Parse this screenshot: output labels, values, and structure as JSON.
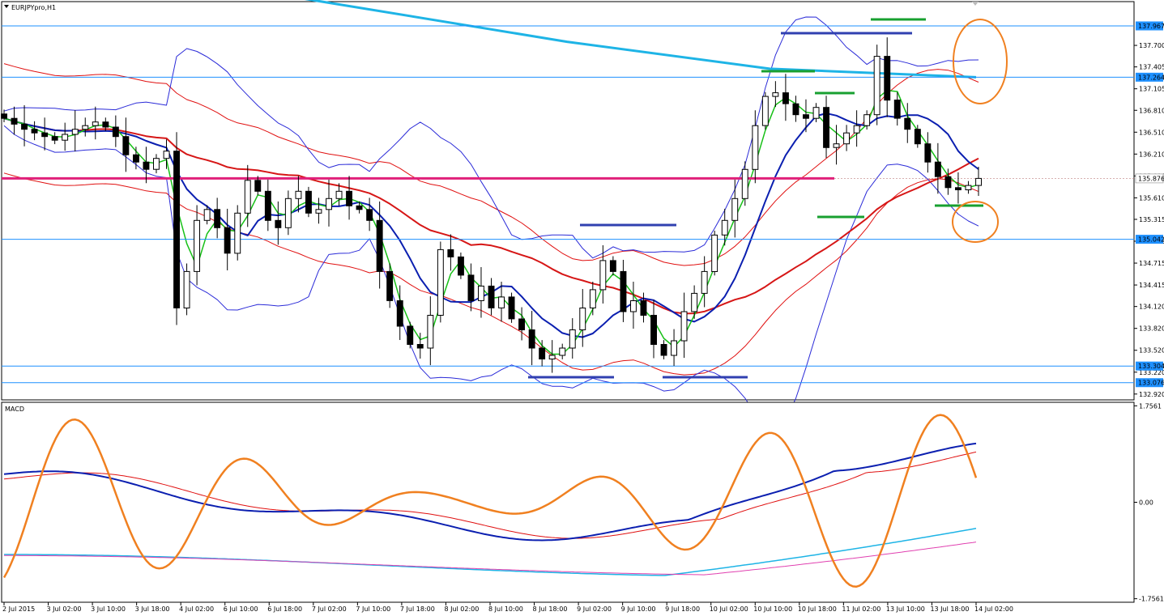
{
  "window": {
    "symbol": "EURJPYpro,H1"
  },
  "colors": {
    "candle": "#000000",
    "bollinger": "#2b2bd8",
    "envelope": "#e01010",
    "ma_fast": "#17c017",
    "ma_mid": "#0b1fb0",
    "ma_slow": "#d61616",
    "ma_long": "#1eb4e6",
    "macd_main": "#0b1fb0",
    "macd_signal": "#e01010",
    "stoch": "#f08020",
    "macd_slow_a": "#1eb4e6",
    "macd_slow_b": "#e040b0",
    "hline": "#1e90ff",
    "pivot": "#e0207a",
    "marker_top": "#3040b0",
    "marker_green": "#18a030",
    "circle": "#f08020",
    "box": "#1e90ff"
  },
  "chart_data": {
    "type": "candlestick",
    "symbol": "EURJPYpro",
    "timeframe": "H1",
    "price_axis": {
      "ticks": [
        137.7,
        137.405,
        137.105,
        136.81,
        136.51,
        136.21,
        135.91,
        135.61,
        135.315,
        135.015,
        134.715,
        134.415,
        134.12,
        133.82,
        133.52,
        133.22,
        132.92
      ],
      "ylim": [
        132.84,
        138.3
      ]
    },
    "price_labels": [
      {
        "text": "137.967",
        "price": 137.967,
        "style": "box"
      },
      {
        "text": "137.264",
        "price": 137.264,
        "style": "box"
      },
      {
        "text": "135.876",
        "price": 135.876,
        "style": "plain"
      },
      {
        "text": "135.042",
        "price": 135.042,
        "style": "box"
      },
      {
        "text": "133.304",
        "price": 133.304,
        "style": "box"
      },
      {
        "text": "133.076",
        "price": 133.076,
        "style": "box"
      }
    ],
    "horizontal_lines": [
      137.967,
      137.264,
      135.042,
      133.304,
      133.076
    ],
    "pivot_line": 135.876,
    "time_axis": [
      "2 Jul 2015",
      "3 Jul 02:00",
      "3 Jul 10:00",
      "3 Jul 18:00",
      "4 Jul 02:00",
      "6 Jul 10:00",
      "6 Jul 18:00",
      "7 Jul 02:00",
      "7 Jul 10:00",
      "7 Jul 18:00",
      "8 Jul 02:00",
      "8 Jul 10:00",
      "8 Jul 18:00",
      "9 Jul 02:00",
      "9 Jul 10:00",
      "9 Jul 18:00",
      "10 Jul 02:00",
      "10 Jul 10:00",
      "10 Jul 18:00",
      "11 Jul 02:00",
      "13 Jul 10:00",
      "13 Jul 18:00",
      "14 Jul 02:00"
    ],
    "candles_close": [
      136.7,
      136.62,
      136.55,
      136.5,
      136.45,
      136.4,
      136.48,
      136.55,
      136.6,
      136.65,
      136.58,
      136.45,
      136.2,
      136.1,
      136.0,
      136.15,
      136.25,
      134.1,
      134.6,
      135.3,
      135.45,
      135.2,
      134.85,
      135.4,
      135.85,
      135.7,
      135.3,
      135.2,
      135.6,
      135.7,
      135.4,
      135.45,
      135.6,
      135.7,
      135.5,
      135.45,
      135.3,
      134.6,
      134.2,
      133.85,
      133.6,
      133.55,
      134.0,
      134.9,
      134.8,
      134.55,
      134.2,
      134.4,
      134.1,
      134.25,
      133.95,
      133.8,
      133.55,
      133.4,
      133.45,
      133.55,
      133.8,
      134.1,
      134.35,
      134.75,
      134.6,
      134.05,
      134.2,
      134.0,
      133.6,
      133.45,
      133.65,
      134.05,
      134.3,
      134.6,
      135.1,
      135.3,
      135.6,
      136.0,
      136.6,
      137.0,
      137.05,
      136.9,
      136.75,
      136.7,
      136.85,
      136.3,
      136.35,
      136.5,
      136.6,
      136.75,
      137.55,
      136.95,
      136.7,
      136.55,
      136.35,
      136.1,
      135.9,
      135.75,
      135.72,
      135.78,
      135.876
    ],
    "indicators": [
      "Bollinger Bands",
      "Moving Average (fast)",
      "Moving Average (medium)",
      "Moving Average (slow)",
      "Envelopes"
    ],
    "annotations": [
      "top markers",
      "green level markers",
      "circles at right edge"
    ],
    "subchart": {
      "name": "MACD",
      "label": "MACD",
      "ticks": [
        1.7561,
        0.0,
        -1.7561
      ],
      "tick_labels": [
        "1.7561",
        "0.00",
        "-1.7561"
      ],
      "ylim": [
        -1.82,
        1.82
      ]
    }
  }
}
